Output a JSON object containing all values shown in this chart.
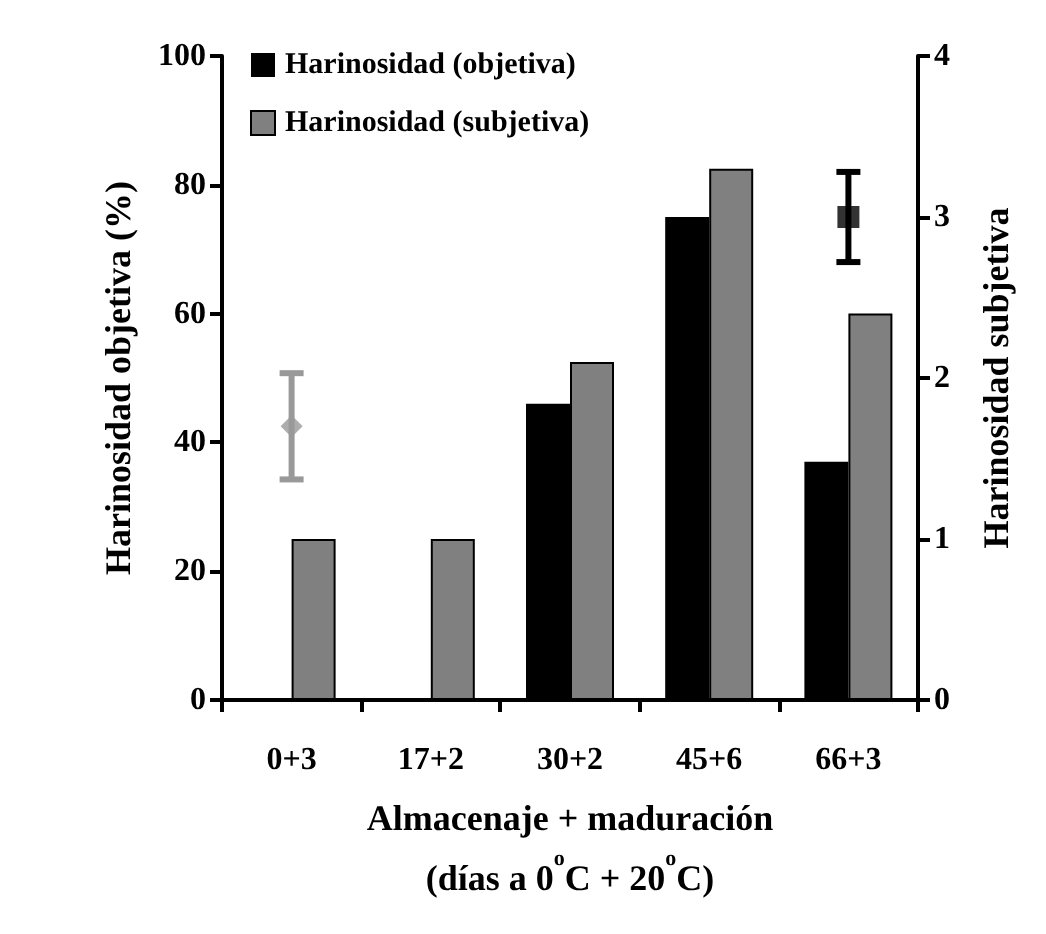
{
  "chart_data": {
    "type": "bar",
    "xlabel": "Almacenaje + maduración\n(días a 0$^{o}$C + 20$^{o}$C)",
    "ylabel": "Harinosidad objetiva (%)",
    "y2label": "Harinosidad subjetiva",
    "categories": [
      "0+3",
      "17+2",
      "30+2",
      "45+6",
      "66+3"
    ],
    "series": [
      {
        "name": "Harinosidad (objetiva)",
        "color": "#000000",
        "values": [
          null,
          null,
          46,
          75,
          37
        ]
      },
      {
        "name": "Harinosidad (subjetiva)",
        "color": "#808080",
        "values": [
          1.0,
          1.0,
          2.1,
          3.3,
          2.4
        ],
        "axis": "y2"
      },
      {
        "type": "scatter",
        "color": "#999999",
        "x": [
          "0+3"
        ],
        "values": [
          1.7
        ],
        "errors": [
          [
            1.37,
            2.03
          ]
        ],
        "axis": "y2",
        "marker": "diamond"
      },
      {
        "type": "scatter",
        "color": "#000000",
        "x": [
          "66+3"
        ],
        "values": [
          75
        ],
        "errors": [
          [
            68,
            82
          ]
        ],
        "marker": "square"
      }
    ],
    "ylim": [
      0,
      100
    ],
    "yticks": [
      0,
      20,
      40,
      60,
      80,
      100
    ],
    "y2lim": [
      0,
      4
    ],
    "y2ticks": [
      0,
      1,
      2,
      3,
      4
    ],
    "grid": false,
    "legend": "top left"
  }
}
